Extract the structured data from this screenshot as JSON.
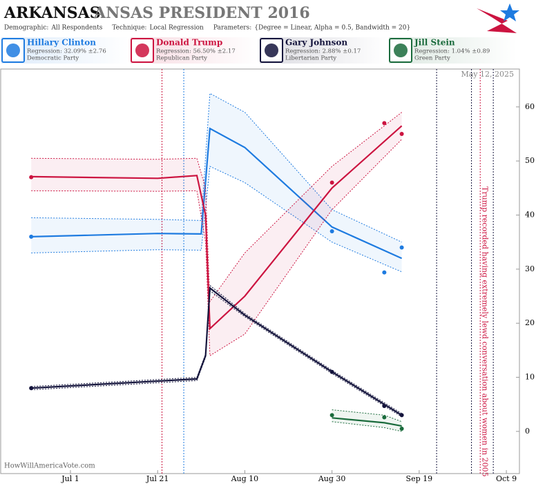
{
  "header": {
    "state": "ARKANSAS",
    "title": "ANSAS PRESIDENT 2016",
    "params": [
      {
        "label": "Demographic:",
        "value": "All Respondents"
      },
      {
        "label": "Technique:",
        "value": "Local Regression"
      },
      {
        "label": "Parameters:",
        "value": "{Degree = Linear, Alpha = 0.5, Bandwidth = 20}"
      }
    ],
    "date": "May 12, 2025",
    "source": "HowWillAmericaVote.com"
  },
  "chart_data": {
    "type": "line",
    "xlim": [
      "Jun 15",
      "Oct 12"
    ],
    "xticks": [
      "Jul 1",
      "Jul 21",
      "Aug 10",
      "Aug 30",
      "Sep 19",
      "Oct 9"
    ],
    "ylim": [
      -7.8,
      67
    ],
    "yticks": [
      0,
      10,
      20,
      30,
      40,
      50,
      60
    ],
    "events": [
      {
        "x": "Jul 22",
        "color": "#cc1440"
      },
      {
        "x": "Jul 27",
        "color": "#1e7be0"
      },
      {
        "x": "Sep 23",
        "color": "#14143c"
      },
      {
        "x": "Oct 1",
        "color": "#14143c"
      },
      {
        "x": "Oct 3",
        "color": "#cc1440"
      },
      {
        "x": "Oct 6",
        "color": "#14143c"
      }
    ],
    "annotation": {
      "x": "Oct 4",
      "text": "Trump recorded having extremely lewd conversation about women in 2005"
    },
    "series": [
      {
        "name": "Hillary Clinton",
        "regression": "Regression: 32.09% ±2.76",
        "party": "Democratic Party",
        "color": "#1e7be0",
        "points": {
          "x": [
            "Jun 22",
            "Aug 30",
            "Sep 11",
            "Sep 15"
          ],
          "values": [
            36,
            37,
            29.4,
            34
          ]
        },
        "fit": {
          "x": [
            "Jun 22",
            "Jul 21",
            "Jul 31",
            "Aug 2",
            "Aug 10",
            "Aug 30",
            "Sep 15"
          ],
          "values": [
            36,
            36.6,
            36.5,
            56,
            52.5,
            37.8,
            32
          ],
          "upper": [
            39.5,
            39.2,
            39,
            62.5,
            59,
            41,
            35
          ],
          "lower": [
            33,
            33.6,
            33.5,
            49,
            46,
            35,
            29.5
          ]
        }
      },
      {
        "name": "Donald Trump",
        "regression": "Regression: 56.50% ±2.17",
        "party": "Republican Party",
        "color": "#cc1440",
        "points": {
          "x": [
            "Jun 22",
            "Aug 30",
            "Sep 11",
            "Sep 15"
          ],
          "values": [
            47,
            46,
            57,
            55
          ]
        },
        "fit": {
          "x": [
            "Jun 22",
            "Jul 21",
            "Jul 30",
            "Aug 1",
            "Aug 2",
            "Aug 10",
            "Aug 30",
            "Sep 15"
          ],
          "values": [
            47.1,
            46.8,
            47.3,
            40,
            19,
            25,
            45,
            56.5
          ],
          "upper": [
            50.5,
            50.3,
            50.5,
            45,
            24,
            33,
            49,
            59
          ],
          "lower": [
            44.5,
            44.4,
            44.5,
            35,
            14,
            18,
            41,
            54
          ]
        }
      },
      {
        "name": "Gary Johnson",
        "regression": "Regression: 2.88% ±0.17",
        "party": "Libertarian Party",
        "color": "#14143c",
        "points": {
          "x": [
            "Jun 22",
            "Aug 30",
            "Sep 11",
            "Sep 15"
          ],
          "values": [
            8,
            11,
            4.7,
            3
          ]
        },
        "fit": {
          "x": [
            "Jun 22",
            "Jul 30",
            "Aug 1",
            "Aug 2",
            "Aug 10",
            "Aug 30",
            "Sep 15"
          ],
          "values": [
            8,
            9.7,
            14,
            26.5,
            21.5,
            11,
            3
          ],
          "upper": [
            8.3,
            10,
            14.3,
            27,
            21.8,
            11.3,
            3.3
          ],
          "lower": [
            7.7,
            9.4,
            13.7,
            26,
            21.2,
            10.7,
            2.7
          ]
        }
      },
      {
        "name": "Jill Stein",
        "regression": "Regression: 1.04% ±0.89",
        "party": "Green Party",
        "color": "#1a6b3c",
        "points": {
          "x": [
            "Aug 30",
            "Sep 11",
            "Sep 15"
          ],
          "values": [
            3,
            2.6,
            0.5
          ]
        },
        "fit": {
          "x": [
            "Aug 30",
            "Sep 11",
            "Sep 15"
          ],
          "values": [
            2.5,
            1.6,
            1
          ],
          "upper": [
            4,
            3,
            1.8
          ],
          "lower": [
            1.8,
            0.7,
            0
          ]
        }
      }
    ]
  }
}
